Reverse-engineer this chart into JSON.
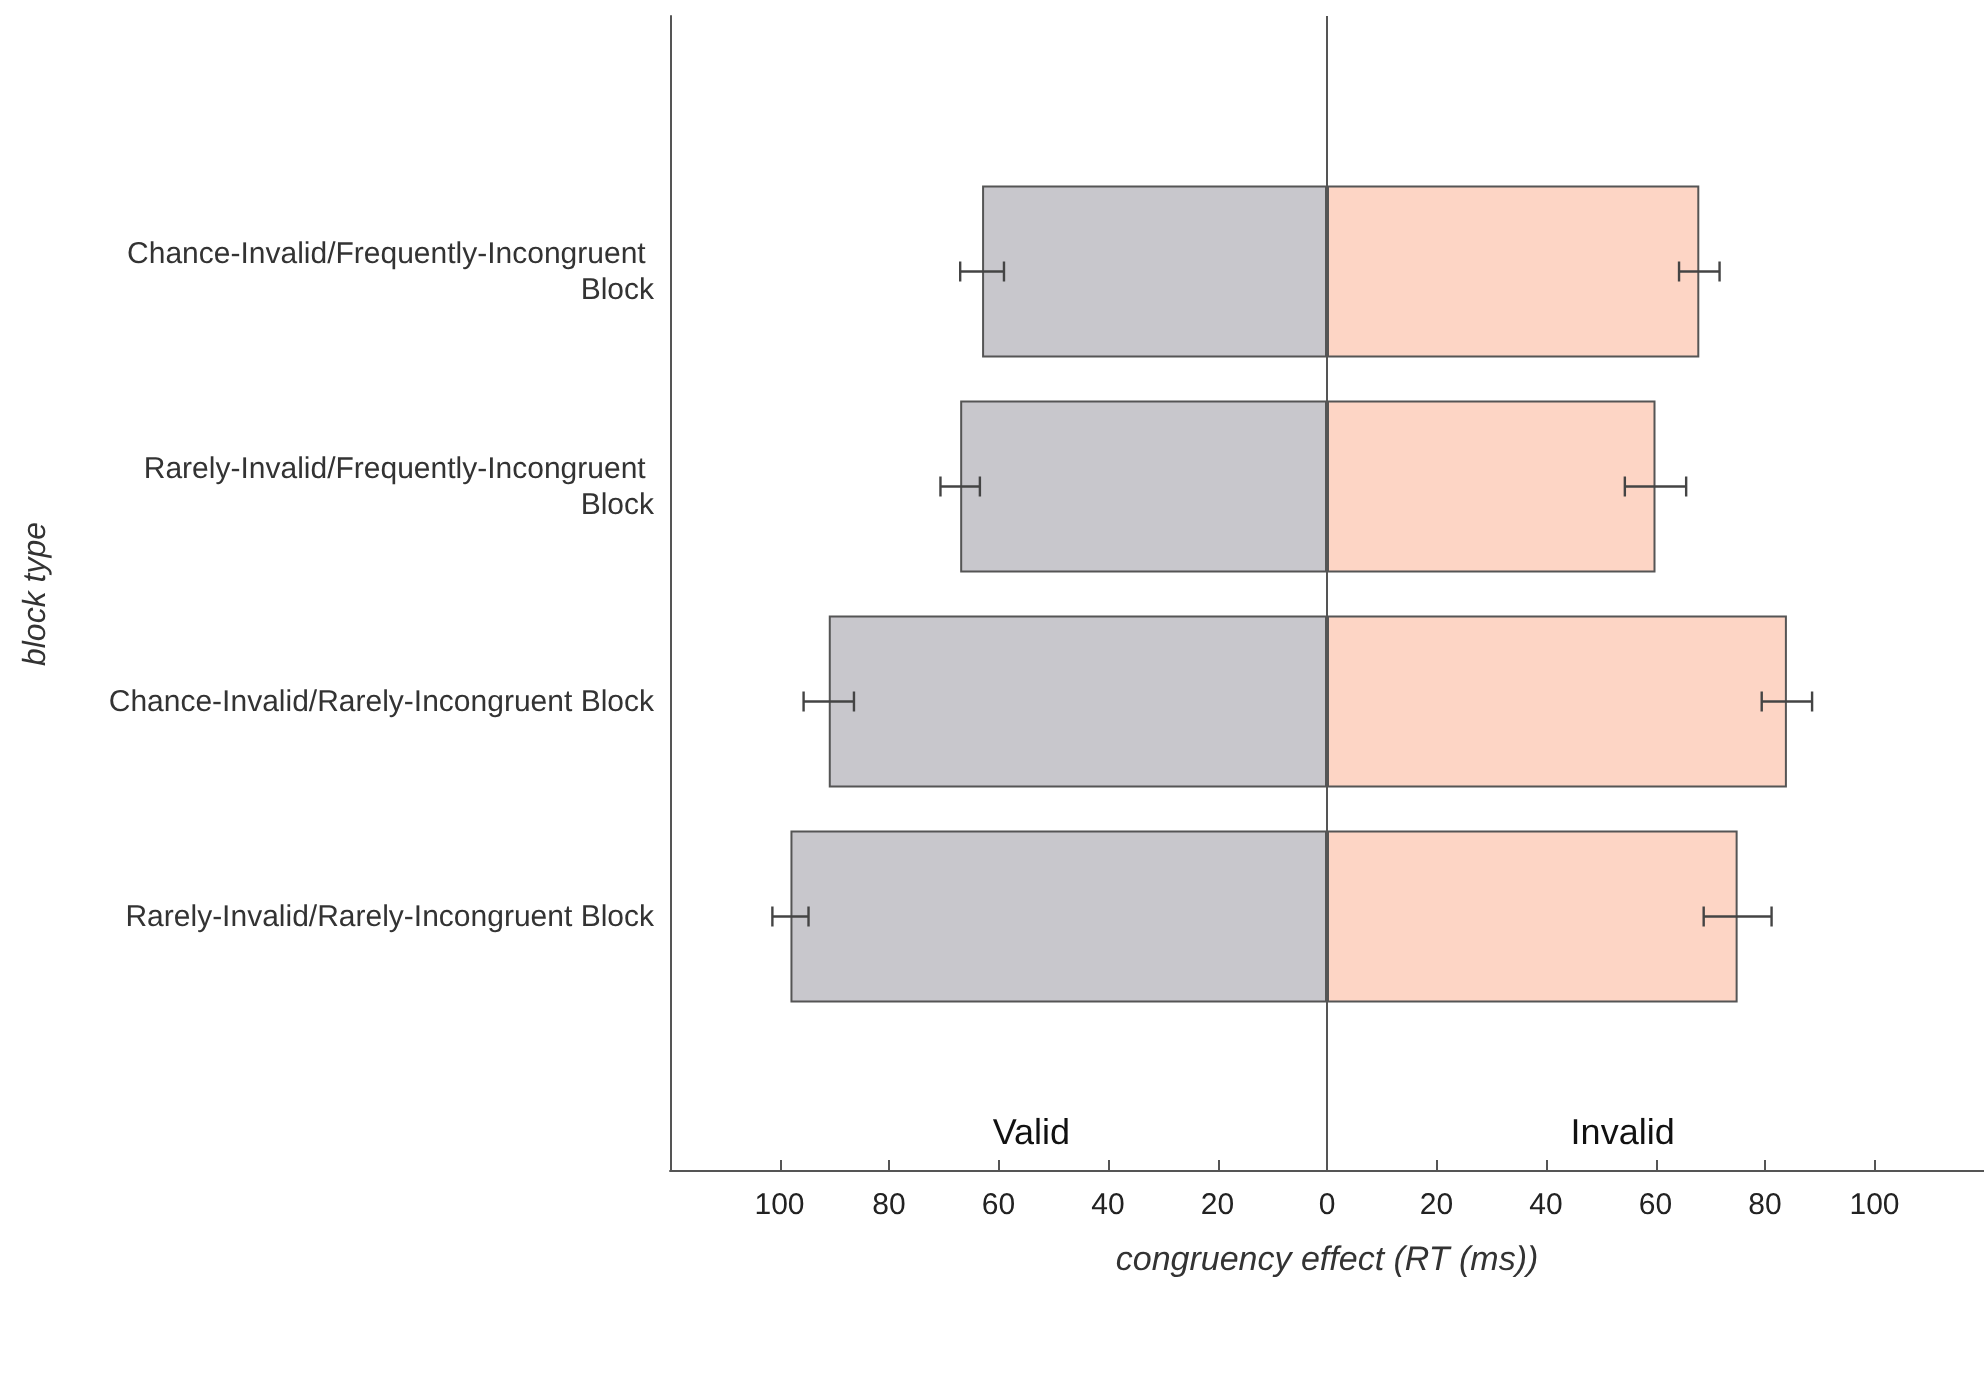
{
  "chart_data": {
    "type": "bar",
    "orientation": "horizontal",
    "xlabel": "congruency effect (RT (ms))",
    "ylabel": "block type",
    "categories": [
      "Chance-Invalid/Frequently-Incongruent Block",
      "Rarely-Invalid/Frequently-Incongruent Block",
      "Chance-Invalid/Rarely-Incongruent Block",
      "Rarely-Invalid/Rarely-Incongruent Block"
    ],
    "series": [
      {
        "color": "#c8c7cc",
        "values": [
          -63,
          -67,
          -91,
          -98
        ],
        "errors": [
          4,
          3.6,
          4.6,
          3.3
        ]
      },
      {
        "color": "#fdd5c5",
        "values": [
          68,
          60,
          84,
          75
        ],
        "errors": [
          3.7,
          5.6,
          4.6,
          6.2
        ]
      }
    ],
    "annotations": [
      "Valid",
      "Invalid"
    ],
    "stacked": true,
    "xlim": [
      -120,
      120
    ],
    "xticks": [
      {
        "value": -100,
        "label": "100"
      },
      {
        "value": -80,
        "label": "80"
      },
      {
        "value": -60,
        "label": "60"
      },
      {
        "value": -40,
        "label": "40"
      },
      {
        "value": -20,
        "label": "20"
      },
      0,
      20,
      40,
      60,
      80,
      100
    ],
    "ref_lines": [
      {
        "axis": "x",
        "value": 0,
        "color": "#555555"
      }
    ],
    "grid": false
  }
}
